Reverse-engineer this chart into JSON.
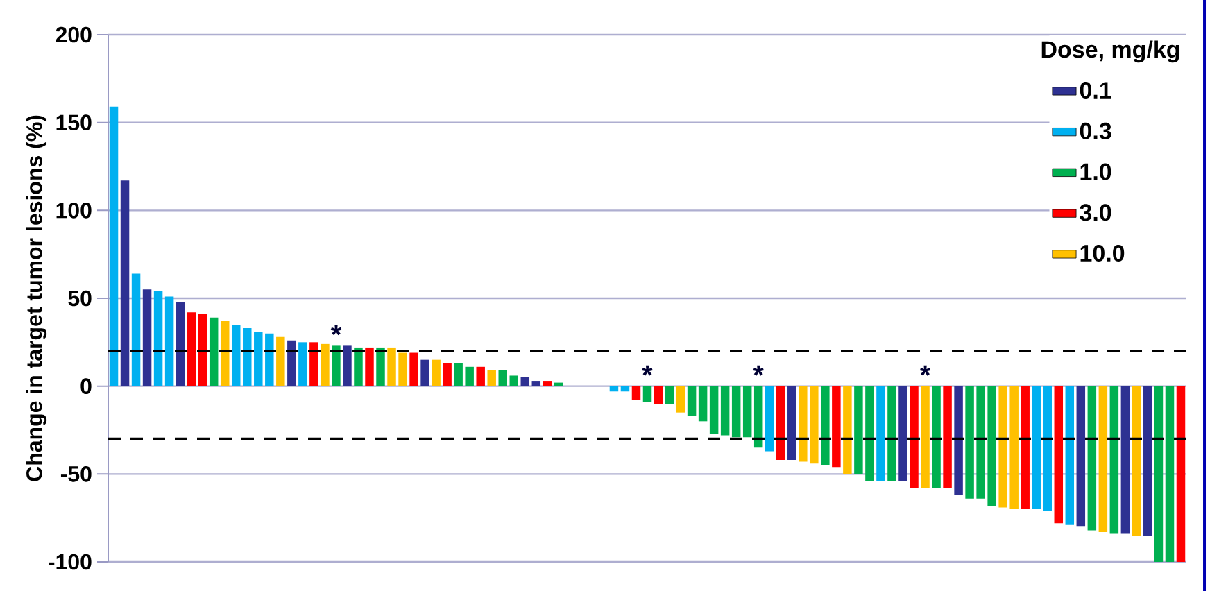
{
  "chart_data": {
    "type": "bar",
    "ylabel": "Change in target tumor lesions (%)",
    "legend_title": "Dose, mg/kg",
    "categories": [
      null,
      null,
      null,
      null,
      null,
      null,
      null,
      null,
      null,
      null,
      null,
      null,
      null,
      null,
      null,
      null,
      null,
      null,
      null,
      null,
      null,
      null,
      null,
      null,
      null,
      null,
      null,
      null,
      null,
      null,
      null,
      null,
      null,
      null,
      null,
      null,
      null,
      null,
      null,
      null,
      null,
      null,
      null,
      null,
      null,
      null,
      null,
      null,
      null,
      null,
      null,
      null,
      null,
      null,
      null,
      null,
      null,
      null,
      null,
      null,
      null,
      null,
      null,
      null,
      null,
      null,
      null,
      null,
      null,
      null,
      null,
      null,
      null,
      null,
      null,
      null,
      null,
      null,
      null,
      null,
      null,
      null,
      null,
      null,
      null,
      null,
      null,
      null,
      null,
      null,
      null,
      null,
      null,
      null,
      null,
      null,
      null
    ],
    "series": [
      {
        "name": "0.1",
        "color": "#2e3192",
        "values": [
          null,
          117,
          null,
          55,
          null,
          null,
          48,
          null,
          null,
          null,
          null,
          null,
          null,
          null,
          null,
          null,
          26,
          null,
          null,
          null,
          null,
          23,
          null,
          null,
          null,
          null,
          null,
          null,
          15,
          null,
          null,
          null,
          null,
          null,
          null,
          null,
          null,
          5,
          3,
          null,
          null,
          null,
          null,
          null,
          null,
          null,
          null,
          null,
          null,
          null,
          null,
          null,
          null,
          null,
          null,
          null,
          null,
          null,
          null,
          null,
          null,
          -42,
          null,
          null,
          null,
          null,
          null,
          null,
          null,
          null,
          null,
          -54,
          null,
          null,
          null,
          null,
          -62,
          null,
          null,
          null,
          null,
          null,
          null,
          null,
          null,
          null,
          null,
          -80,
          null,
          null,
          null,
          -84,
          null,
          -85,
          null,
          null,
          null
        ]
      },
      {
        "name": "0.3",
        "color": "#00b0f0",
        "values": [
          159,
          null,
          64,
          null,
          54,
          51,
          null,
          null,
          null,
          null,
          null,
          35,
          33,
          31,
          30,
          null,
          null,
          25,
          null,
          null,
          null,
          null,
          null,
          null,
          null,
          null,
          null,
          null,
          null,
          null,
          null,
          null,
          null,
          null,
          null,
          null,
          null,
          null,
          null,
          null,
          null,
          null,
          null,
          null,
          null,
          -3,
          -3,
          null,
          null,
          null,
          null,
          null,
          null,
          null,
          null,
          null,
          null,
          null,
          null,
          -37,
          null,
          null,
          null,
          null,
          null,
          null,
          null,
          null,
          null,
          -54,
          null,
          null,
          null,
          null,
          null,
          null,
          null,
          null,
          null,
          null,
          null,
          null,
          null,
          -70,
          -71,
          null,
          -79,
          null,
          null,
          null,
          null,
          null,
          null,
          null,
          null,
          null,
          null
        ]
      },
      {
        "name": "1.0",
        "color": "#00b050",
        "values": [
          null,
          null,
          null,
          null,
          null,
          null,
          null,
          null,
          null,
          39,
          null,
          null,
          null,
          null,
          null,
          null,
          null,
          null,
          null,
          null,
          23,
          null,
          22,
          null,
          22,
          null,
          null,
          null,
          null,
          null,
          null,
          13,
          11,
          null,
          null,
          9,
          6,
          null,
          null,
          null,
          2,
          null,
          null,
          null,
          null,
          null,
          null,
          null,
          -9,
          null,
          -10,
          null,
          -17,
          -20,
          -27,
          -28,
          -29,
          -29,
          -35,
          null,
          null,
          null,
          null,
          null,
          -45,
          null,
          null,
          -50,
          -54,
          null,
          -54,
          null,
          null,
          null,
          -58,
          null,
          null,
          -64,
          -64,
          -68,
          null,
          null,
          null,
          null,
          null,
          null,
          null,
          null,
          -82,
          null,
          -84,
          null,
          null,
          null,
          -100,
          -100,
          null
        ],
        "value_labels": [
          null,
          null,
          null,
          null,
          null,
          null,
          null,
          null,
          null,
          null,
          null,
          null,
          null,
          null,
          null,
          null,
          null,
          null,
          null,
          null,
          "*",
          null,
          null,
          null,
          null,
          null,
          null,
          null,
          null,
          null,
          null,
          null,
          null,
          null,
          null,
          null,
          null,
          null,
          null,
          null,
          null,
          null,
          null,
          null,
          null,
          null,
          null,
          null,
          "*",
          null,
          null,
          null,
          null,
          null,
          null,
          null,
          null,
          null,
          "*",
          null,
          null,
          null,
          null,
          null,
          null,
          null,
          null,
          null,
          null,
          null,
          null,
          null,
          null,
          null,
          null,
          null,
          null,
          null,
          null,
          null,
          null,
          null,
          null,
          null,
          null,
          null,
          null,
          null,
          null,
          null,
          null,
          null,
          null,
          null,
          null,
          null,
          null
        ]
      },
      {
        "name": "3.0",
        "color": "#ff0000",
        "values": [
          null,
          null,
          null,
          null,
          null,
          null,
          null,
          42,
          41,
          null,
          null,
          null,
          null,
          null,
          null,
          null,
          null,
          null,
          25,
          null,
          null,
          null,
          null,
          22,
          null,
          null,
          null,
          19,
          null,
          null,
          13,
          null,
          null,
          11,
          null,
          null,
          null,
          null,
          null,
          3,
          null,
          null,
          null,
          null,
          null,
          null,
          null,
          -8,
          null,
          -10,
          null,
          null,
          null,
          null,
          null,
          null,
          null,
          null,
          null,
          null,
          -42,
          null,
          null,
          null,
          null,
          -46,
          null,
          null,
          null,
          null,
          null,
          null,
          -58,
          null,
          null,
          -58,
          null,
          null,
          null,
          null,
          null,
          null,
          -70,
          null,
          null,
          -78,
          null,
          null,
          null,
          null,
          null,
          null,
          null,
          null,
          null,
          null,
          -100
        ]
      },
      {
        "name": "10.0",
        "color": "#ffc000",
        "values": [
          null,
          null,
          null,
          null,
          null,
          null,
          null,
          null,
          null,
          null,
          37,
          null,
          null,
          null,
          null,
          28,
          null,
          null,
          null,
          24,
          null,
          null,
          null,
          null,
          null,
          22,
          19,
          null,
          null,
          15,
          null,
          null,
          null,
          null,
          9,
          null,
          null,
          null,
          null,
          null,
          null,
          null,
          null,
          null,
          null,
          null,
          null,
          null,
          null,
          null,
          null,
          -15,
          null,
          null,
          null,
          null,
          null,
          null,
          null,
          null,
          null,
          null,
          -43,
          -44,
          null,
          null,
          -50,
          null,
          null,
          null,
          null,
          null,
          null,
          -58,
          null,
          null,
          null,
          null,
          null,
          null,
          -69,
          -70,
          null,
          null,
          null,
          null,
          null,
          null,
          null,
          -83,
          null,
          null,
          -85,
          null,
          null,
          null,
          null
        ],
        "value_labels": [
          null,
          null,
          null,
          null,
          null,
          null,
          null,
          null,
          null,
          null,
          null,
          null,
          null,
          null,
          null,
          null,
          null,
          null,
          null,
          null,
          null,
          null,
          null,
          null,
          null,
          null,
          null,
          null,
          null,
          null,
          null,
          null,
          null,
          null,
          null,
          null,
          null,
          null,
          null,
          null,
          null,
          null,
          null,
          null,
          null,
          null,
          null,
          null,
          null,
          null,
          null,
          null,
          null,
          null,
          null,
          null,
          null,
          null,
          null,
          null,
          null,
          null,
          null,
          null,
          null,
          null,
          null,
          null,
          null,
          null,
          null,
          null,
          null,
          "*",
          null,
          null,
          null,
          null,
          null,
          null,
          null,
          null,
          null,
          null,
          null,
          null,
          null,
          null,
          null,
          null,
          null,
          null,
          null,
          null,
          null,
          null,
          null
        ]
      }
    ],
    "ylim": [
      -100,
      200
    ],
    "yticks": [
      -100,
      -50,
      0,
      50,
      100,
      150,
      200
    ],
    "grid": "y",
    "legend": "top right",
    "ref_lines": [
      {
        "axis": "y",
        "value": 20,
        "color": "#000000",
        "line_style": "dashed"
      },
      {
        "axis": "y",
        "value": -30,
        "color": "#000000",
        "line_style": "dashed"
      }
    ]
  }
}
